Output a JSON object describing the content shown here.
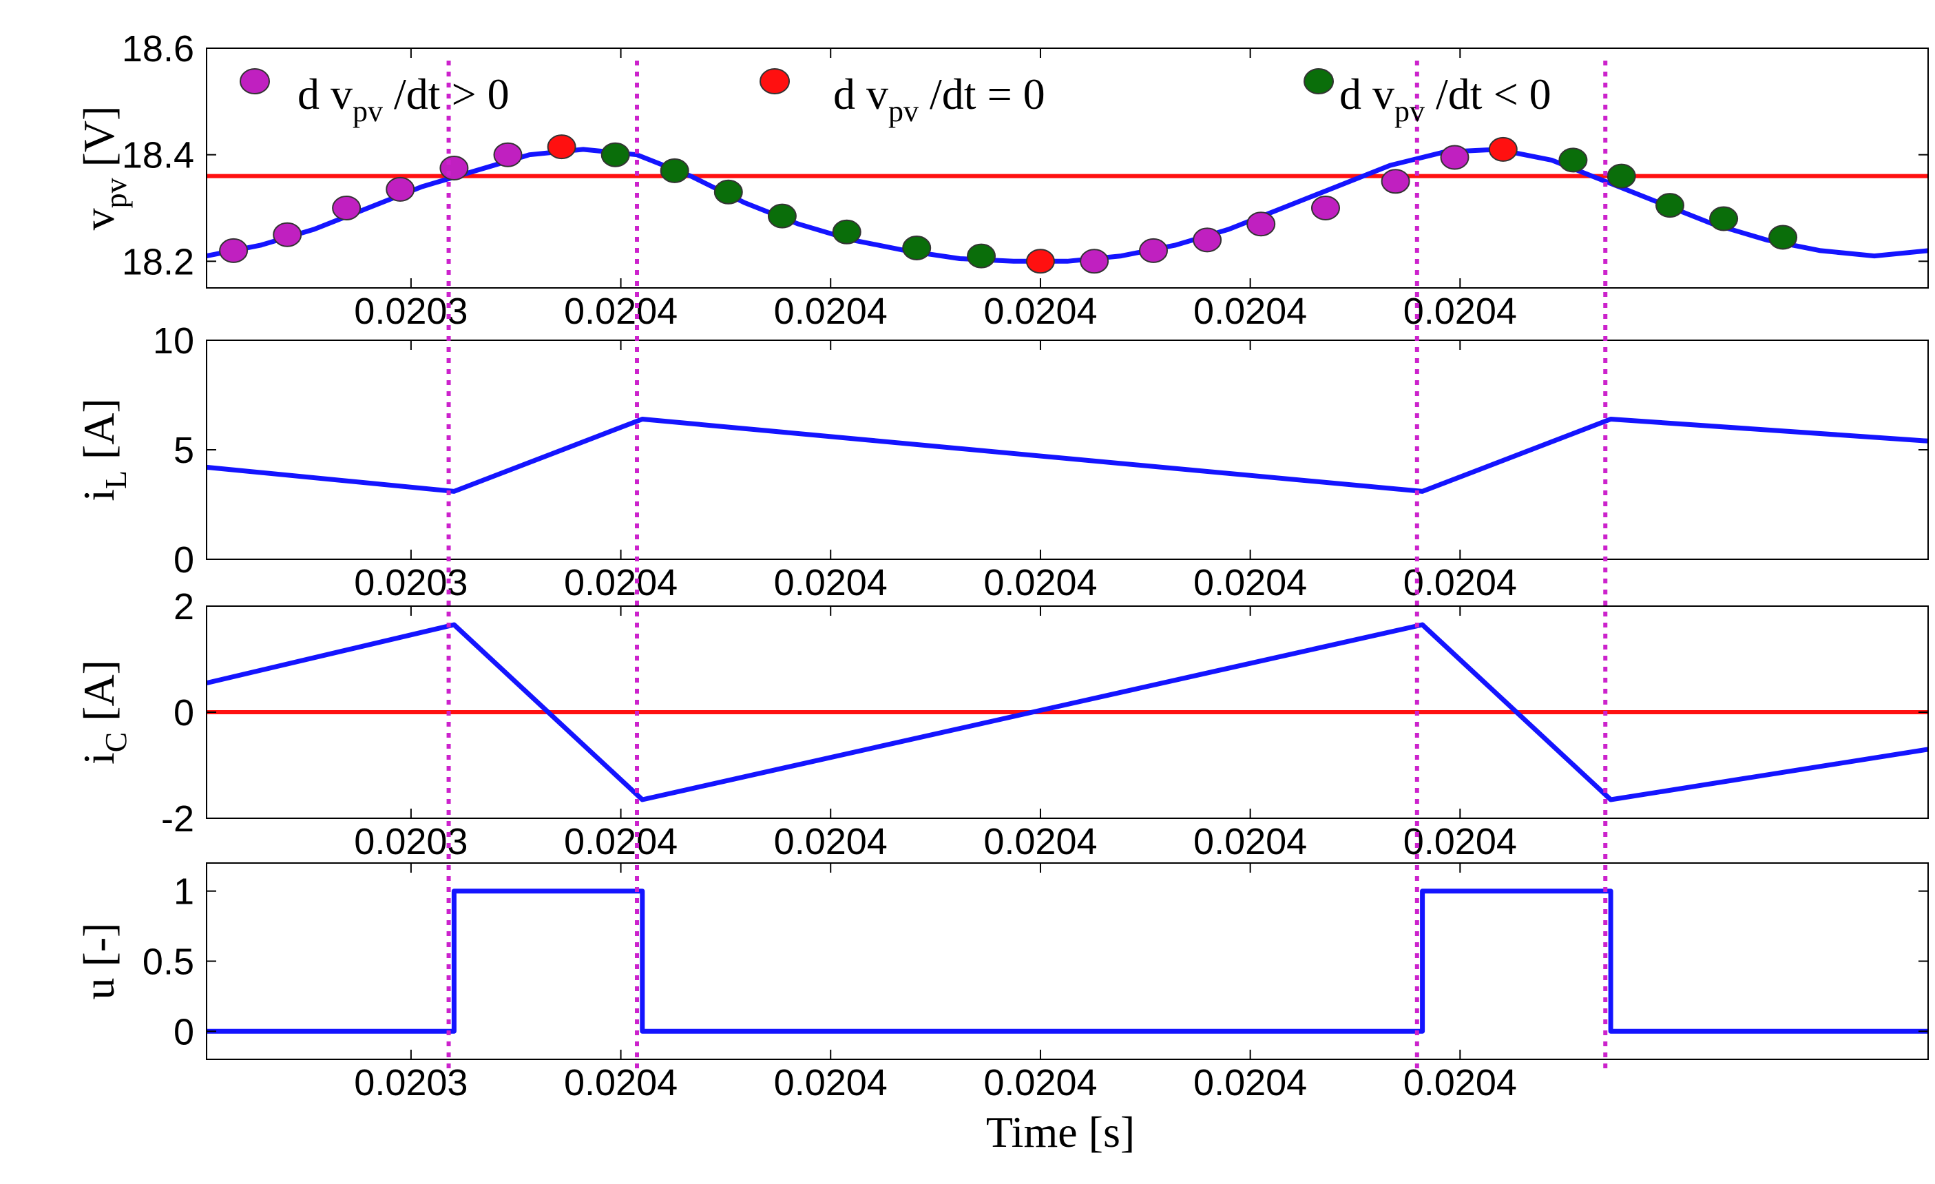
{
  "chart_data": [
    {
      "type": "line",
      "id": "vpv",
      "ylabel": "v",
      "ylabel_sub": "pv",
      "ylabel_unit": " [V]",
      "ylim": [
        18.15,
        18.6
      ],
      "yticks": [
        18.2,
        18.4,
        18.6
      ],
      "ytick_labels": [
        "18.2",
        "18.4",
        "18.6"
      ],
      "xtick_labels": [
        "0.0203",
        "0.0204",
        "0.0204",
        "0.0204",
        "0.0204",
        "0.0204"
      ],
      "reference": 18.36,
      "colors": {
        "line": "#1414ff",
        "reference": "#ff1010"
      },
      "series": [
        {
          "x": [
            0.02025,
            0.02026,
            0.02027,
            0.02028,
            0.02029,
            0.0203,
            0.02031,
            0.02032,
            0.02033,
            0.02034,
            0.02035,
            0.02036,
            0.02037,
            0.02038,
            0.02039,
            0.0204,
            0.02041,
            0.02042,
            0.02043,
            0.02044,
            0.02045,
            0.02046,
            0.02047,
            0.02048,
            0.02049,
            0.0205,
            0.02051,
            0.02052,
            0.02053,
            0.02054,
            0.02055,
            0.02056,
            0.02057
          ],
          "values": [
            18.21,
            18.23,
            18.26,
            18.3,
            18.34,
            18.37,
            18.4,
            18.41,
            18.4,
            18.36,
            18.31,
            18.27,
            18.24,
            18.22,
            18.205,
            18.2,
            18.2,
            18.21,
            18.23,
            18.26,
            18.3,
            18.34,
            18.38,
            18.405,
            18.41,
            18.39,
            18.35,
            18.31,
            18.27,
            18.24,
            18.22,
            18.21,
            18.22
          ]
        }
      ],
      "markers": [
        {
          "t": 0.020255,
          "v": 18.22,
          "class": "pos"
        },
        {
          "t": 0.020265,
          "v": 18.25,
          "class": "pos"
        },
        {
          "t": 0.020276,
          "v": 18.3,
          "class": "pos"
        },
        {
          "t": 0.020286,
          "v": 18.335,
          "class": "pos"
        },
        {
          "t": 0.020296,
          "v": 18.375,
          "class": "pos"
        },
        {
          "t": 0.020306,
          "v": 18.4,
          "class": "pos"
        },
        {
          "t": 0.020316,
          "v": 18.415,
          "class": "zero"
        },
        {
          "t": 0.020326,
          "v": 18.4,
          "class": "neg"
        },
        {
          "t": 0.020337,
          "v": 18.37,
          "class": "neg"
        },
        {
          "t": 0.020347,
          "v": 18.33,
          "class": "neg"
        },
        {
          "t": 0.020357,
          "v": 18.285,
          "class": "neg"
        },
        {
          "t": 0.020369,
          "v": 18.255,
          "class": "neg"
        },
        {
          "t": 0.020382,
          "v": 18.225,
          "class": "neg"
        },
        {
          "t": 0.020394,
          "v": 18.21,
          "class": "neg"
        },
        {
          "t": 0.020405,
          "v": 18.2,
          "class": "zero"
        },
        {
          "t": 0.020415,
          "v": 18.2,
          "class": "pos"
        },
        {
          "t": 0.020426,
          "v": 18.22,
          "class": "pos"
        },
        {
          "t": 0.020436,
          "v": 18.24,
          "class": "pos"
        },
        {
          "t": 0.020446,
          "v": 18.27,
          "class": "pos"
        },
        {
          "t": 0.020458,
          "v": 18.3,
          "class": "pos"
        },
        {
          "t": 0.020471,
          "v": 18.35,
          "class": "pos"
        },
        {
          "t": 0.020482,
          "v": 18.395,
          "class": "pos"
        },
        {
          "t": 0.020491,
          "v": 18.41,
          "class": "zero"
        },
        {
          "t": 0.020504,
          "v": 18.39,
          "class": "neg"
        },
        {
          "t": 0.020513,
          "v": 18.36,
          "class": "neg"
        },
        {
          "t": 0.020522,
          "v": 18.305,
          "class": "neg"
        },
        {
          "t": 0.020532,
          "v": 18.28,
          "class": "neg"
        },
        {
          "t": 0.020543,
          "v": 18.245,
          "class": "neg"
        }
      ],
      "legend": [
        {
          "class": "pos",
          "color": "#c020c0",
          "prefix": "d v",
          "sub": "pv",
          "suffix": " /dt > 0"
        },
        {
          "class": "zero",
          "color": "#ff1010",
          "prefix": "d v",
          "sub": "pv",
          "suffix": " /dt = 0"
        },
        {
          "class": "neg",
          "color": "#0a6e0a",
          "prefix": "d v",
          "sub": "pv",
          "suffix": " /dt < 0"
        }
      ]
    },
    {
      "type": "line",
      "id": "iL",
      "ylabel": "i",
      "ylabel_sub": "L",
      "ylabel_unit": " [A]",
      "ylim": [
        0,
        10
      ],
      "yticks": [
        0,
        5,
        10
      ],
      "ytick_labels": [
        "0",
        "5",
        "10"
      ],
      "xtick_labels": [
        "0.0203",
        "0.0204",
        "0.0204",
        "0.0204",
        "0.0204",
        "0.0204"
      ],
      "series": [
        {
          "x": [
            0.02025,
            0.020296,
            0.020331,
            0.020476,
            0.020511,
            0.02057
          ],
          "values": [
            4.2,
            3.1,
            6.4,
            3.1,
            6.4,
            5.4
          ]
        }
      ]
    },
    {
      "type": "line",
      "id": "iC",
      "ylabel": "i",
      "ylabel_sub": "C",
      "ylabel_unit": " [A]",
      "ylim": [
        -2,
        2
      ],
      "yticks": [
        -2,
        0,
        2
      ],
      "ytick_labels": [
        "-2",
        "0",
        "2"
      ],
      "xtick_labels": [
        "0.0203",
        "0.0204",
        "0.0204",
        "0.0204",
        "0.0204",
        "0.0204"
      ],
      "reference": 0,
      "series": [
        {
          "x": [
            0.02025,
            0.020296,
            0.020331,
            0.020476,
            0.020511,
            0.02057
          ],
          "values": [
            0.55,
            1.65,
            -1.65,
            1.65,
            -1.65,
            -0.7
          ]
        }
      ]
    },
    {
      "type": "line",
      "id": "u",
      "ylabel": "u [-]",
      "ylim": [
        -0.2,
        1.2
      ],
      "yticks": [
        0,
        0.5,
        1
      ],
      "ytick_labels": [
        "0",
        "0.5",
        "1"
      ],
      "xtick_labels": [
        "0.0203",
        "0.0204",
        "0.0204",
        "0.0204",
        "0.0204",
        "0.0204"
      ],
      "xlabel": "Time [s]",
      "series": [
        {
          "x": [
            0.02025,
            0.020296,
            0.020296,
            0.020331,
            0.020331,
            0.020476,
            0.020476,
            0.020511,
            0.020511,
            0.02057
          ],
          "values": [
            0,
            0,
            1,
            1,
            0,
            0,
            1,
            1,
            0,
            0
          ]
        }
      ]
    }
  ],
  "xlim": [
    0.02025,
    0.02057
  ],
  "xticks": [
    0.020288,
    0.020327,
    0.020366,
    0.020405,
    0.020444,
    0.020483
  ],
  "switch_times": [
    0.020295,
    0.02033,
    0.020475,
    0.02051
  ]
}
